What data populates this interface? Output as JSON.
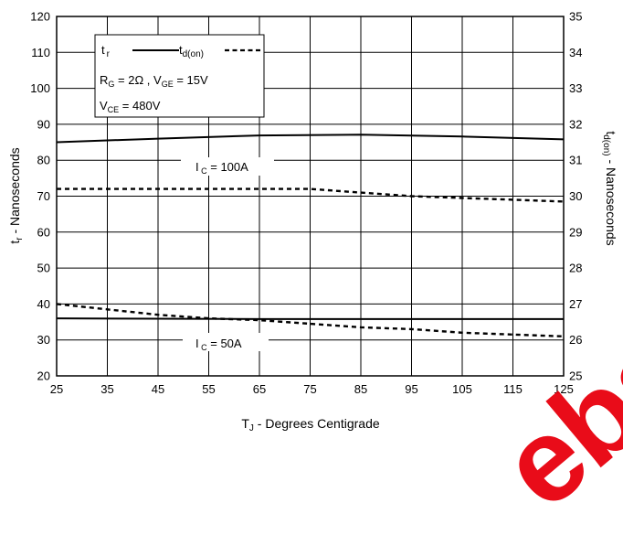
{
  "chart_data": {
    "type": "line",
    "xlabel": {
      "main": "T",
      "sub": "J",
      "rest": " - Degrees Centigrade"
    },
    "ylabel_left": {
      "main": "t",
      "sub": "r",
      "rest": " - Nanoseconds"
    },
    "ylabel_right": {
      "main": "t",
      "sub": "d(on)",
      "rest": " - Nanoseconds"
    },
    "xlim": [
      25,
      125
    ],
    "ylim_left": [
      20,
      120
    ],
    "ylim_right": [
      25,
      35
    ],
    "x_ticks": [
      "25",
      "35",
      "45",
      "55",
      "65",
      "75",
      "85",
      "95",
      "105",
      "115",
      "125"
    ],
    "y_left_ticks": [
      "20",
      "30",
      "40",
      "50",
      "60",
      "70",
      "80",
      "90",
      "100",
      "110",
      "120"
    ],
    "y_right_ticks": [
      "25",
      "26",
      "27",
      "28",
      "29",
      "30",
      "31",
      "32",
      "33",
      "34",
      "35"
    ],
    "grid": true,
    "legend": {
      "placement": "top-left",
      "entry1": {
        "main": "t",
        "sub": "r"
      },
      "entry2": {
        "main": "t",
        "sub": "d(on)"
      },
      "cond_rg": {
        "a": "R",
        "a_sub": "G",
        "a_rest": " = 2Ω ,  V",
        "b_sub": "GE",
        "b_rest": " = 15V"
      },
      "cond_vce": {
        "a": "V",
        "a_sub": "CE",
        "a_rest": " = 480V"
      }
    },
    "annotations": [
      {
        "main": "I",
        "sub": " C",
        "rest": " = 100A"
      },
      {
        "main": "I",
        "sub": " C",
        "rest": " = 50A"
      }
    ],
    "series": [
      {
        "axis": "left",
        "style": "solid",
        "x": [
          25,
          45,
          65,
          85,
          105,
          125
        ],
        "y": [
          85,
          86,
          86.9,
          87.1,
          86.6,
          85.8
        ]
      },
      {
        "axis": "right",
        "style": "dashed",
        "x": [
          25,
          45,
          65,
          75,
          85,
          95,
          105,
          115,
          125
        ],
        "y": [
          30.2,
          30.2,
          30.2,
          30.2,
          30.1,
          30.0,
          29.95,
          29.9,
          29.85
        ]
      },
      {
        "axis": "left",
        "style": "solid",
        "x": [
          25,
          45,
          65,
          85,
          105,
          125
        ],
        "y": [
          36,
          35.9,
          35.8,
          35.8,
          35.8,
          35.8
        ]
      },
      {
        "axis": "right",
        "style": "dashed",
        "x": [
          25,
          35,
          45,
          55,
          65,
          75,
          85,
          95,
          105,
          115,
          125
        ],
        "y": [
          27.0,
          26.85,
          26.7,
          26.6,
          26.55,
          26.45,
          26.35,
          26.3,
          26.2,
          26.15,
          26.1
        ]
      }
    ]
  },
  "watermark": "ebs"
}
